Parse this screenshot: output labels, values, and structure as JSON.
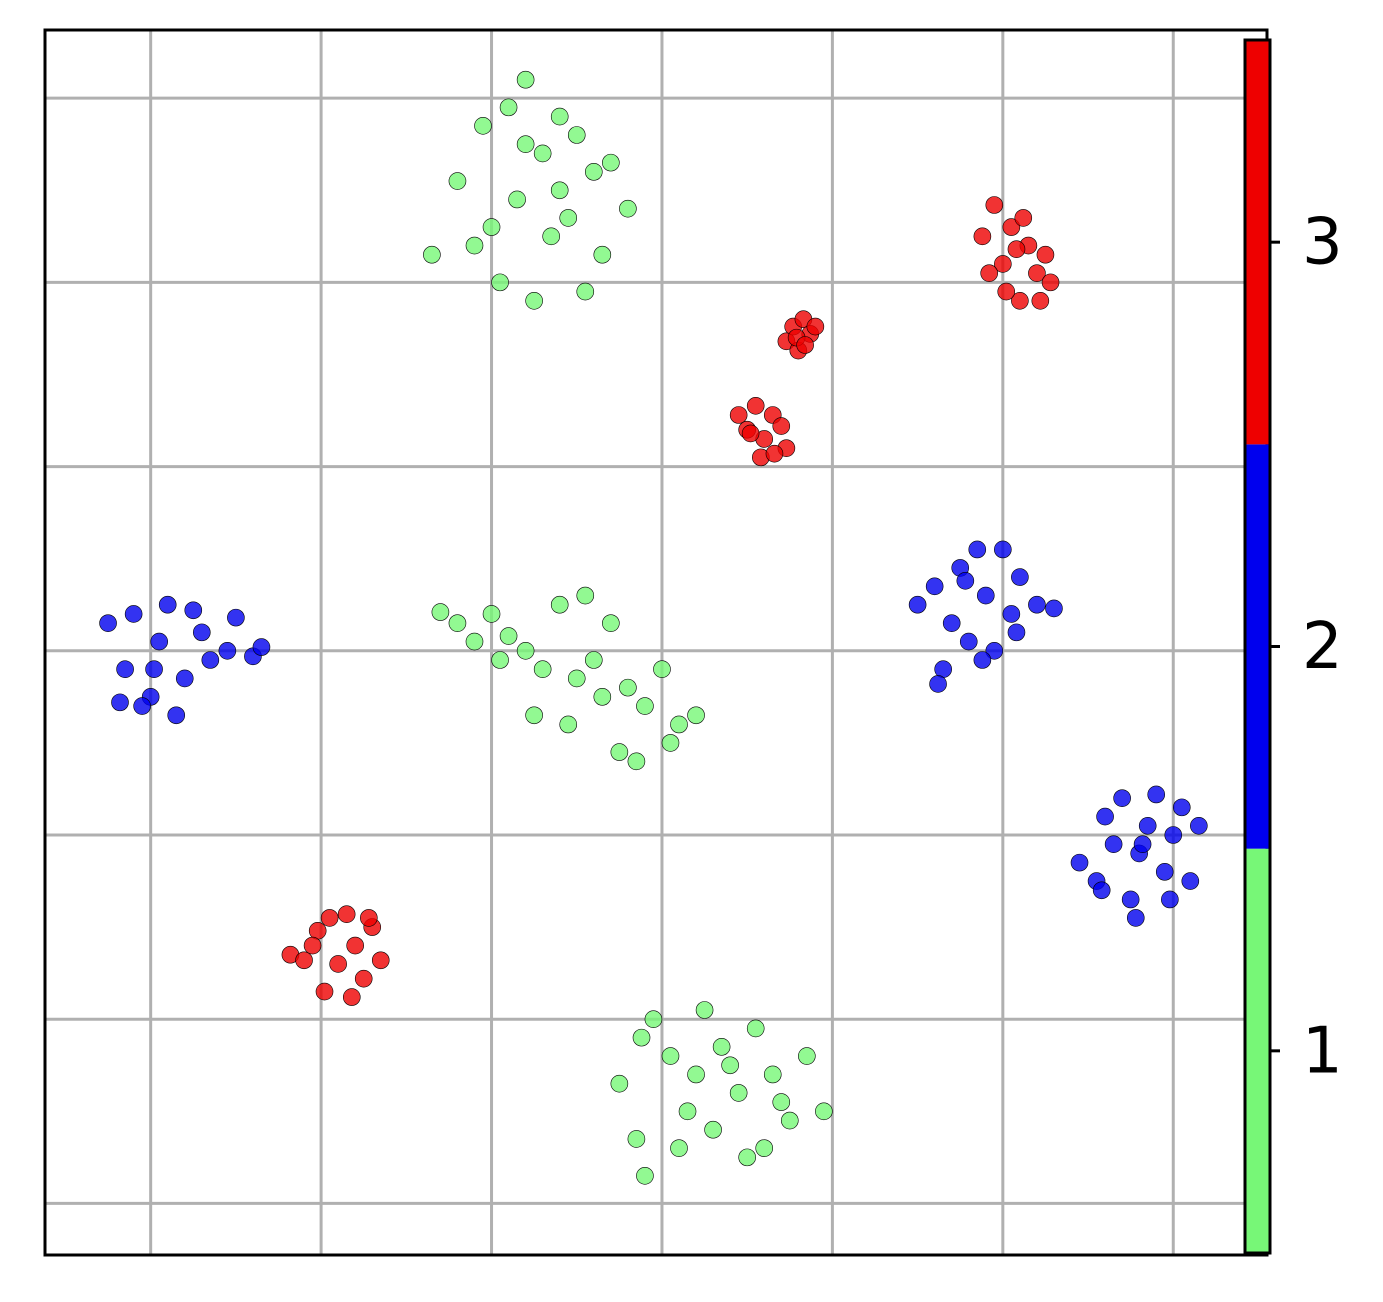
{
  "chart_data": {
    "type": "scatter",
    "grid": true,
    "xlim": [
      -36.2,
      35.5
    ],
    "ylim": [
      -32.8,
      33.7
    ],
    "xticks": [
      -30,
      -20,
      -10,
      0,
      10,
      20,
      30
    ],
    "yticks": [
      -30,
      -20,
      -10,
      0,
      10,
      20,
      30
    ],
    "series": [
      {
        "color": "#77f777",
        "x": [
          -13.5,
          -12.0,
          -10.5,
          -9.0,
          -8.0,
          -7.0,
          -6.0,
          -5.0,
          -4.0,
          -3.0,
          -2.0,
          -10.0,
          -8.5,
          -6.5,
          -5.5,
          -9.5,
          -7.5,
          -4.5,
          -11.0,
          -6.0,
          -8.0,
          -3.5,
          -13.0,
          -12.0,
          -11.0,
          -10.0,
          -9.0,
          -8.0,
          -7.0,
          -6.0,
          -5.0,
          -4.0,
          -3.0,
          -2.0,
          -1.0,
          0.0,
          1.0,
          2.0,
          -7.5,
          -5.5,
          -3.5,
          -2.5,
          -1.5,
          0.5,
          -9.5,
          -4.5,
          -2.5,
          -1.5,
          -0.5,
          0.5,
          1.5,
          2.5,
          3.5,
          4.5,
          5.5,
          6.5,
          7.5,
          8.5,
          9.5,
          -1.0,
          1.0,
          3.0,
          5.0,
          7.0,
          2.0,
          4.0,
          -1.2,
          6.0
        ],
        "values": [
          21.5,
          25.5,
          28.5,
          29.5,
          31.0,
          27.0,
          29.0,
          28.0,
          26.0,
          26.5,
          24.0,
          23.0,
          24.5,
          22.5,
          23.5,
          20.0,
          19.0,
          19.5,
          22.0,
          25.0,
          27.5,
          21.5,
          2.1,
          1.5,
          0.5,
          2.0,
          0.8,
          0.0,
          -1.0,
          2.5,
          -1.5,
          -0.5,
          1.5,
          -2.0,
          -3.0,
          -1.0,
          -4.0,
          -3.5,
          -3.5,
          -4.0,
          -2.5,
          -5.5,
          -6.0,
          -5.0,
          -0.5,
          3.0,
          -23.5,
          -26.5,
          -20.0,
          -22.0,
          -25.0,
          -19.5,
          -21.5,
          -24.0,
          -20.5,
          -23.0,
          -25.5,
          -22.0,
          -25.0,
          -28.5,
          -27.0,
          -26.0,
          -27.5,
          -24.5,
          -23.0,
          -22.5,
          -21.0,
          -27.0
        ]
      },
      {
        "color": "#0000ee",
        "x": [
          -32.5,
          -31.5,
          -31.0,
          -30.0,
          -29.5,
          -29.0,
          -28.5,
          -28.0,
          -27.0,
          -26.5,
          -25.5,
          -25.0,
          -24.0,
          -23.5,
          -30.5,
          -29.8,
          -27.5,
          -31.8,
          15.0,
          16.0,
          16.5,
          17.0,
          17.5,
          18.0,
          18.5,
          19.0,
          19.5,
          20.0,
          20.5,
          21.0,
          22.0,
          23.0,
          16.2,
          18.8,
          20.8,
          17.8,
          24.5,
          25.5,
          26.0,
          26.5,
          27.0,
          27.5,
          28.0,
          28.5,
          29.0,
          29.5,
          30.0,
          30.5,
          31.0,
          31.5,
          25.8,
          27.8,
          29.8,
          28.2
        ],
        "values": [
          1.5,
          -1.0,
          2.0,
          -2.5,
          0.5,
          2.5,
          -3.5,
          -1.5,
          1.0,
          -0.5,
          0.0,
          1.8,
          -0.3,
          0.2,
          -3.0,
          -1.0,
          2.2,
          -2.8,
          2.5,
          3.5,
          -1.0,
          1.5,
          4.5,
          0.5,
          5.5,
          3.0,
          0.0,
          5.5,
          2.0,
          4.0,
          2.5,
          2.3,
          -1.8,
          -0.5,
          1.0,
          3.8,
          -11.5,
          -12.5,
          -9.0,
          -10.5,
          -8.0,
          -13.5,
          -11.0,
          -9.5,
          -7.8,
          -12.0,
          -10.0,
          -8.5,
          -12.5,
          -9.5,
          -13.0,
          -14.5,
          -13.5,
          -10.5
        ]
      },
      {
        "color": "#ee0000",
        "x": [
          18.8,
          19.5,
          20.0,
          20.5,
          21.0,
          21.5,
          22.0,
          22.5,
          22.8,
          19.2,
          20.2,
          21.2,
          22.2,
          20.8,
          7.3,
          7.7,
          8.0,
          8.3,
          8.7,
          9.0,
          7.9,
          8.4,
          4.5,
          5.0,
          5.5,
          6.0,
          6.5,
          7.0,
          7.3,
          5.8,
          6.6,
          5.2,
          -21.8,
          -21.0,
          -20.2,
          -19.5,
          -19.0,
          -18.5,
          -18.0,
          -17.5,
          -17.0,
          -16.5,
          -19.8,
          -18.2,
          -17.2,
          -20.5
        ],
        "values": [
          22.5,
          24.2,
          21.0,
          23.0,
          19.0,
          22.0,
          20.5,
          21.5,
          20.0,
          20.5,
          19.5,
          23.5,
          19.0,
          21.8,
          16.8,
          17.6,
          16.3,
          18.0,
          17.2,
          17.6,
          17.0,
          16.6,
          12.8,
          12.0,
          13.3,
          11.5,
          12.8,
          12.2,
          11.0,
          10.5,
          10.7,
          11.8,
          -16.5,
          -16.8,
          -15.2,
          -14.5,
          -17.0,
          -14.3,
          -16.0,
          -17.8,
          -15.0,
          -16.8,
          -18.5,
          -18.8,
          -14.5,
          -16.0
        ]
      }
    ],
    "colorbar": {
      "ylim": [
        0.5,
        3.5
      ],
      "yticks": [
        1,
        2,
        3
      ]
    }
  }
}
